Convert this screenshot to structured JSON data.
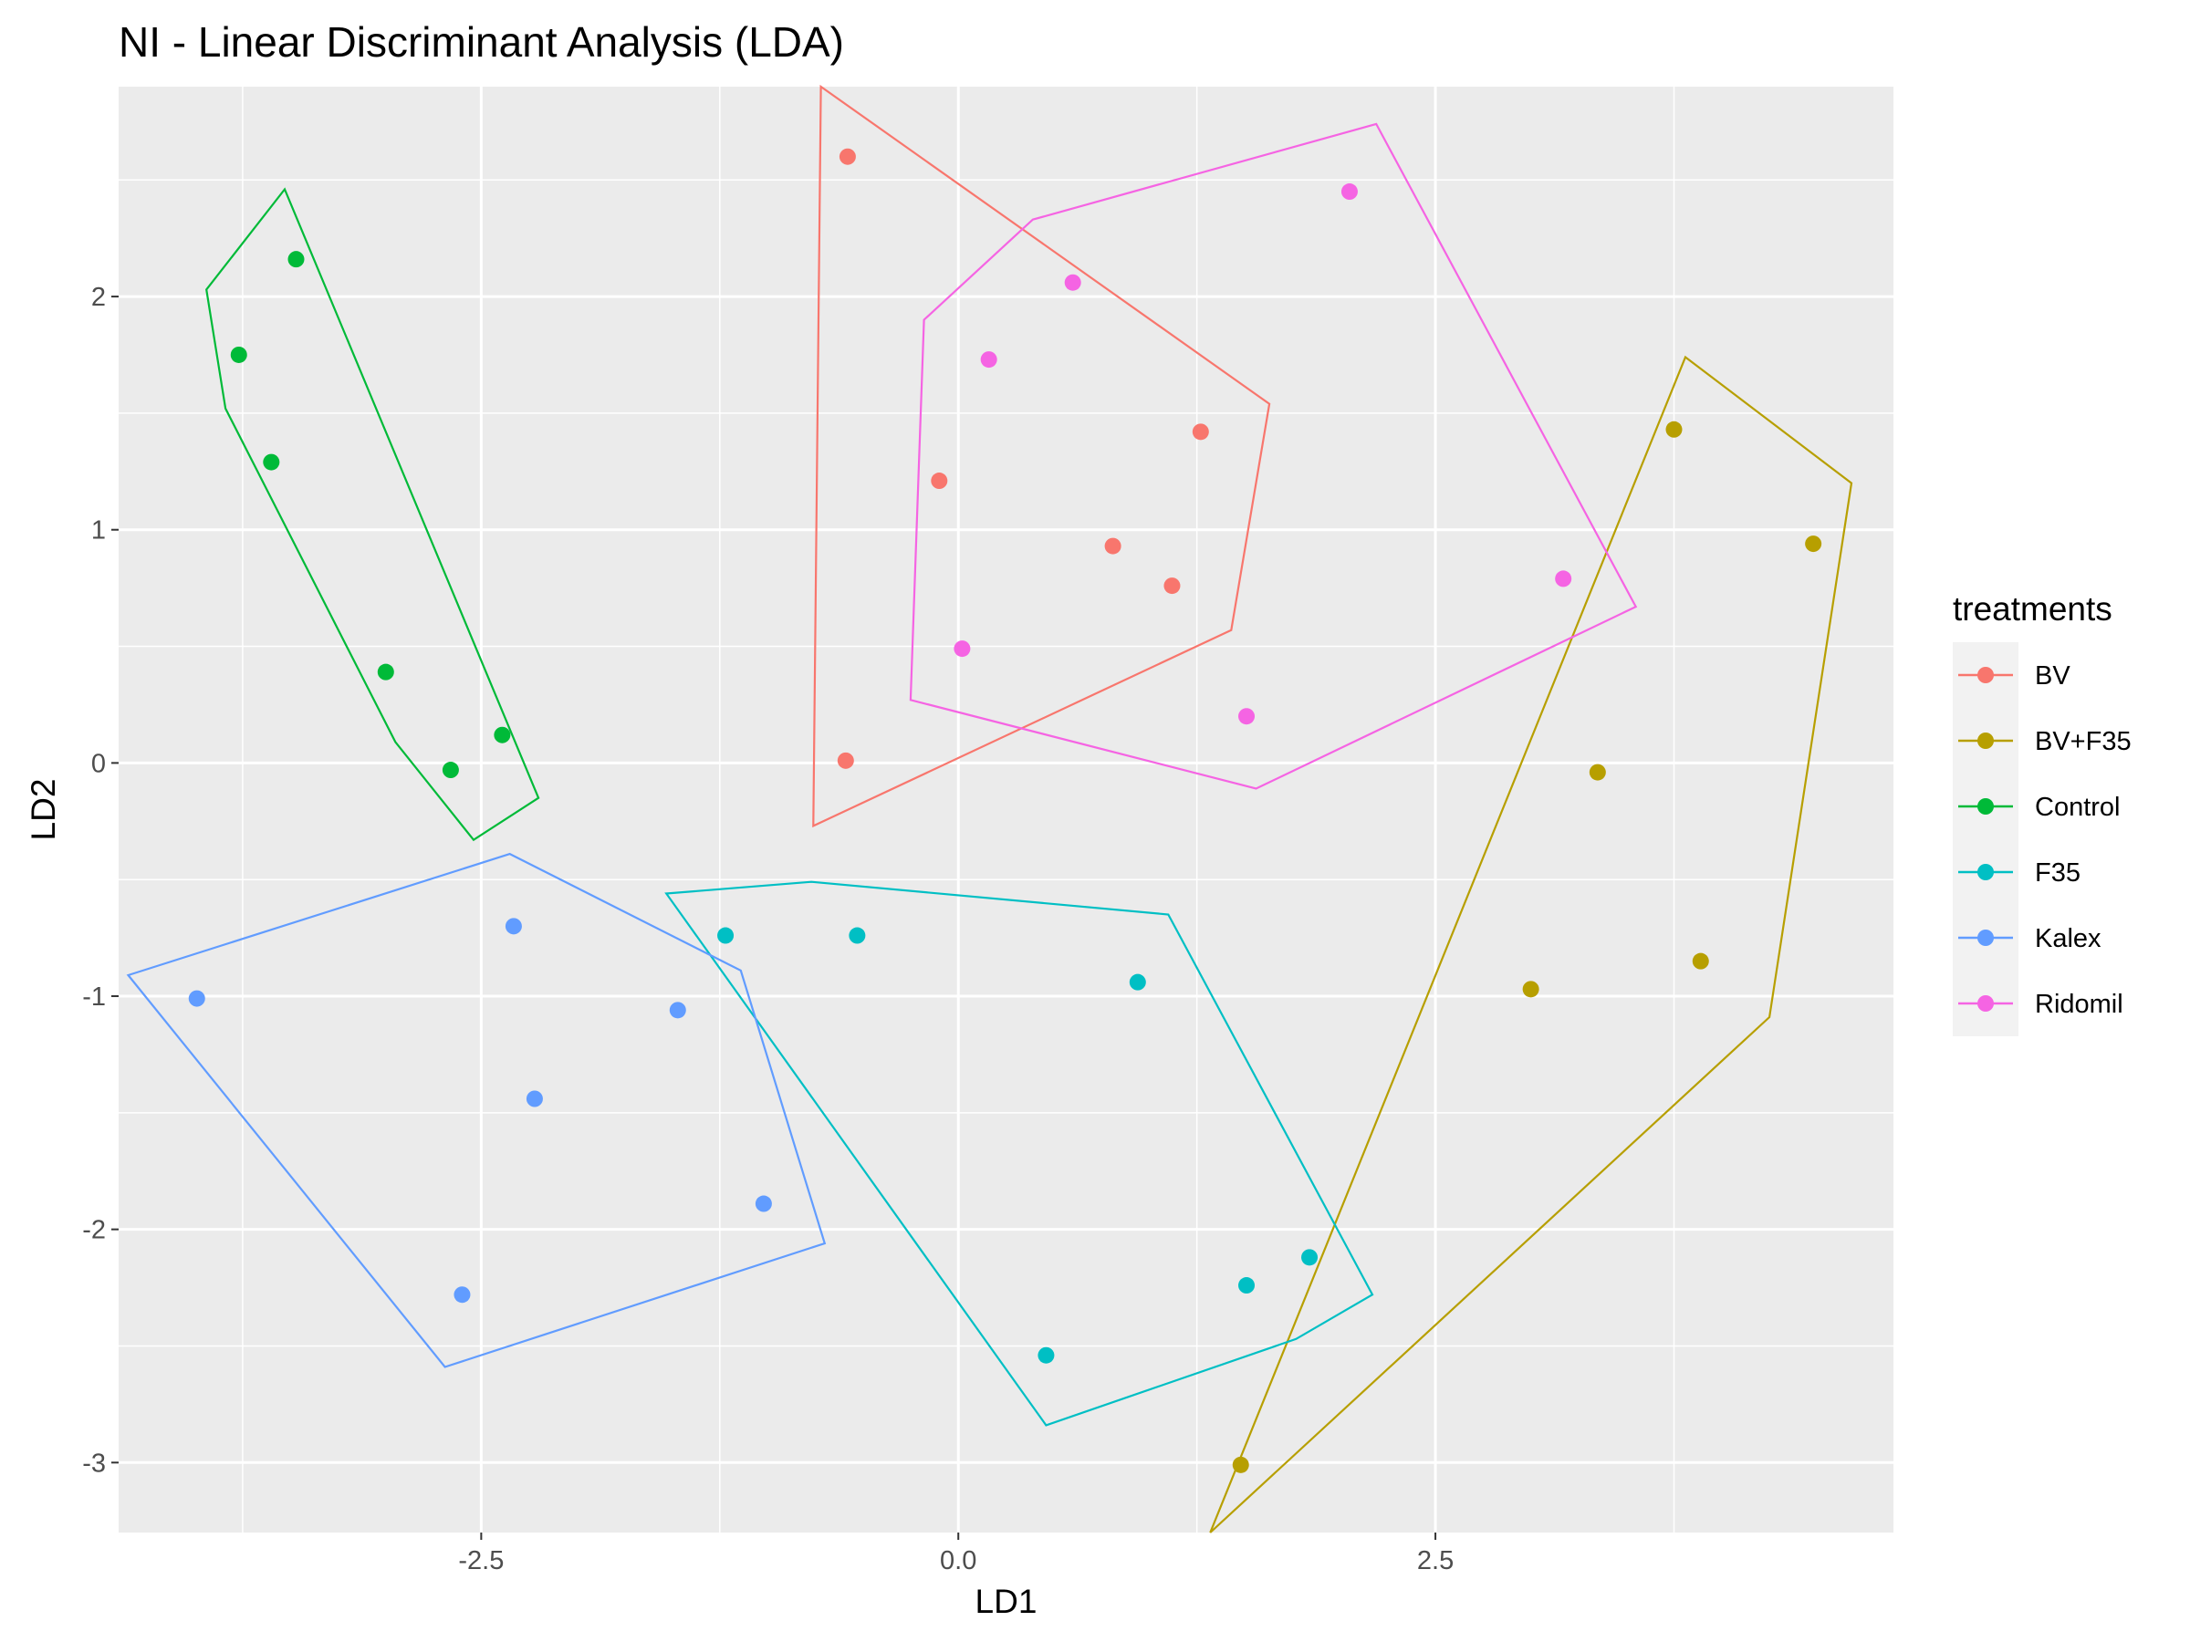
{
  "chart_data": {
    "type": "scatter",
    "title": "NI - Linear Discriminant Analysis (LDA)",
    "xlabel": "LD1",
    "ylabel": "LD2",
    "xlim": [
      -4.4,
      4.9
    ],
    "ylim": [
      -3.3,
      2.9
    ],
    "x_ticks": [
      -2.5,
      0.0,
      2.5
    ],
    "x_tick_labels": [
      "-2.5",
      "0.0",
      "2.5"
    ],
    "y_ticks": [
      -3,
      -2,
      -1,
      0,
      1,
      2
    ],
    "y_tick_labels": [
      "-3",
      "-2",
      "-1",
      "0",
      "1",
      "2"
    ],
    "grid": true,
    "legend": {
      "title": "treatments",
      "position": "right"
    },
    "series": [
      {
        "name": "BV",
        "color": "#F8766D",
        "points": [
          [
            -0.58,
            2.6
          ],
          [
            -0.1,
            1.21
          ],
          [
            1.27,
            1.42
          ],
          [
            0.81,
            0.93
          ],
          [
            1.12,
            0.76
          ],
          [
            -0.59,
            0.01
          ]
        ],
        "hull": [
          [
            -0.72,
            2.9
          ],
          [
            1.63,
            1.54
          ],
          [
            1.43,
            0.57
          ],
          [
            -0.76,
            -0.27
          ]
        ]
      },
      {
        "name": "BV+F35",
        "color": "#B79F00",
        "points": [
          [
            3.75,
            1.43
          ],
          [
            4.48,
            0.94
          ],
          [
            3.35,
            -0.04
          ],
          [
            3.89,
            -0.85
          ],
          [
            3.0,
            -0.97
          ],
          [
            1.48,
            -3.01
          ]
        ],
        "hull": [
          [
            3.81,
            1.74
          ],
          [
            4.68,
            1.2
          ],
          [
            4.25,
            -1.09
          ],
          [
            1.32,
            -3.3
          ]
        ]
      },
      {
        "name": "Control",
        "color": "#00BA38",
        "points": [
          [
            -3.47,
            2.16
          ],
          [
            -3.77,
            1.75
          ],
          [
            -3.6,
            1.29
          ],
          [
            -3.0,
            0.39
          ],
          [
            -2.66,
            -0.03
          ],
          [
            -2.39,
            0.12
          ]
        ],
        "hull": [
          [
            -3.53,
            2.46
          ],
          [
            -2.2,
            -0.15
          ],
          [
            -2.54,
            -0.33
          ],
          [
            -2.95,
            0.09
          ],
          [
            -3.84,
            1.52
          ],
          [
            -3.94,
            2.03
          ]
        ]
      },
      {
        "name": "F35",
        "color": "#00BFC4",
        "points": [
          [
            -1.22,
            -0.74
          ],
          [
            -0.53,
            -0.74
          ],
          [
            0.94,
            -0.94
          ],
          [
            1.51,
            -2.24
          ],
          [
            1.84,
            -2.12
          ],
          [
            0.46,
            -2.54
          ]
        ],
        "hull": [
          [
            -1.53,
            -0.56
          ],
          [
            -0.77,
            -0.51
          ],
          [
            1.1,
            -0.65
          ],
          [
            2.17,
            -2.28
          ],
          [
            1.77,
            -2.47
          ],
          [
            0.46,
            -2.84
          ]
        ]
      },
      {
        "name": "Kalex",
        "color": "#619CFF",
        "points": [
          [
            -2.33,
            -0.7
          ],
          [
            -3.99,
            -1.01
          ],
          [
            -1.47,
            -1.06
          ],
          [
            -2.22,
            -1.44
          ],
          [
            -1.02,
            -1.89
          ],
          [
            -2.6,
            -2.28
          ]
        ],
        "hull": [
          [
            -2.35,
            -0.39
          ],
          [
            -1.14,
            -0.89
          ],
          [
            -0.7,
            -2.06
          ],
          [
            -2.69,
            -2.59
          ],
          [
            -4.35,
            -0.91
          ]
        ]
      },
      {
        "name": "Ridomil",
        "color": "#F564E3",
        "points": [
          [
            2.05,
            2.45
          ],
          [
            0.6,
            2.06
          ],
          [
            0.16,
            1.73
          ],
          [
            3.17,
            0.79
          ],
          [
            0.02,
            0.49
          ],
          [
            1.51,
            0.2
          ]
        ],
        "hull": [
          [
            0.39,
            2.33
          ],
          [
            2.19,
            2.74
          ],
          [
            3.55,
            0.67
          ],
          [
            1.56,
            -0.11
          ],
          [
            -0.25,
            0.27
          ],
          [
            -0.18,
            1.9
          ]
        ]
      }
    ]
  }
}
